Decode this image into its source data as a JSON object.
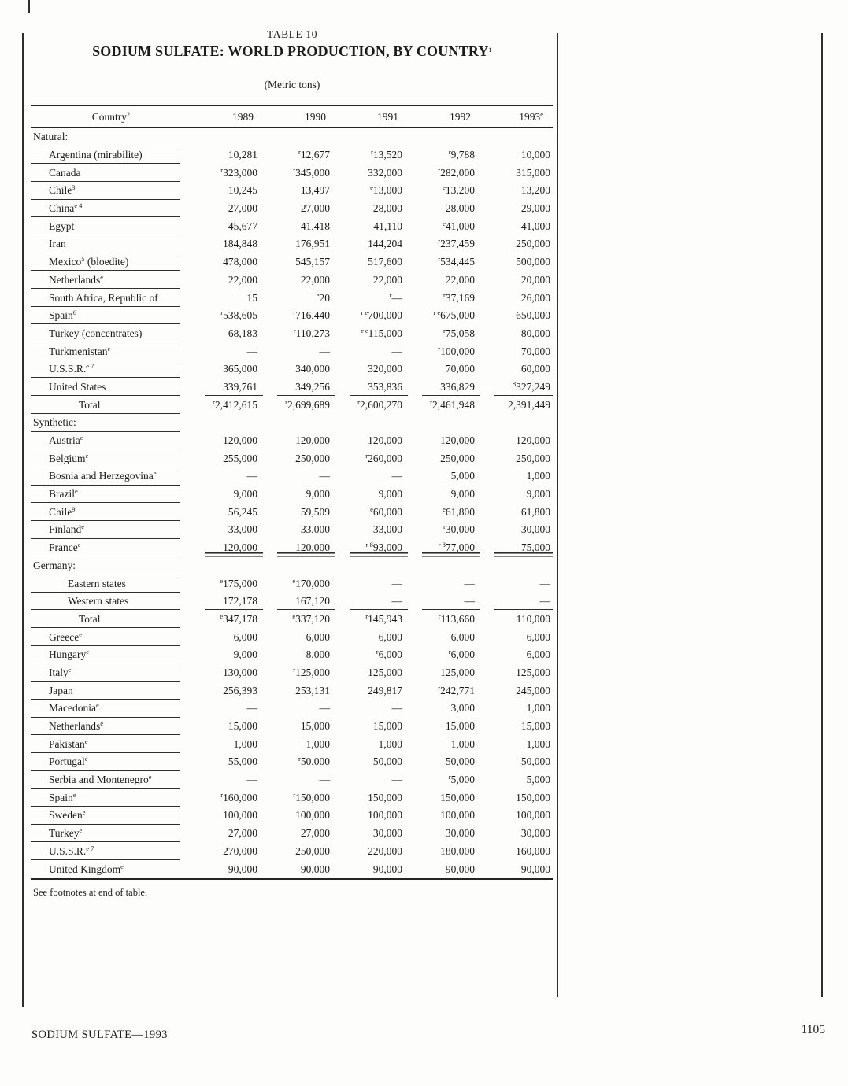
{
  "page": {
    "table_label": "TABLE 10",
    "title": "SODIUM SULFATE:  WORLD PRODUCTION, BY COUNTRY",
    "title_sup": "1",
    "units": "(Metric tons)",
    "see_footnotes": "See footnotes at end of table.",
    "footer_left": "SODIUM SULFATE—1993",
    "page_number": "1105",
    "ink_color": "#1c1c1c",
    "background_color": "#fdfdfb"
  },
  "table": {
    "columns": [
      {
        "label": "Country",
        "sup": "2"
      },
      {
        "label": "1989",
        "sup": ""
      },
      {
        "label": "1990",
        "sup": ""
      },
      {
        "label": "1991",
        "sup": ""
      },
      {
        "label": "1992",
        "sup": ""
      },
      {
        "label": "1993",
        "sup": "e"
      }
    ],
    "rows": [
      {
        "type": "section",
        "label": "Natural:"
      },
      {
        "type": "country",
        "label": "Argentina (mirabilite)",
        "values": [
          "10,281",
          "|r|12,677",
          "|r|13,520",
          "|r|9,788",
          "10,000"
        ]
      },
      {
        "type": "country",
        "label": "Canada",
        "values": [
          "|r|323,000",
          "|r|345,000",
          "332,000",
          "|r|282,000",
          "315,000"
        ]
      },
      {
        "type": "country",
        "label": "Chile|3",
        "values": [
          "10,245",
          "13,497",
          "|e|13,000",
          "|e|13,200",
          "13,200"
        ]
      },
      {
        "type": "country",
        "label": "China|e 4",
        "values": [
          "27,000",
          "27,000",
          "28,000",
          "28,000",
          "29,000"
        ]
      },
      {
        "type": "country",
        "label": "Egypt",
        "values": [
          "45,677",
          "41,418",
          "41,110",
          "|e|41,000",
          "41,000"
        ]
      },
      {
        "type": "country",
        "label": "Iran",
        "values": [
          "184,848",
          "176,951",
          "144,204",
          "|r|237,459",
          "250,000"
        ]
      },
      {
        "type": "country",
        "label": "Mexico|5| (bloedite)",
        "values": [
          "478,000",
          "545,157",
          "517,600",
          "|r|534,445",
          "500,000"
        ]
      },
      {
        "type": "country",
        "label": "Netherlands|e",
        "values": [
          "22,000",
          "22,000",
          "22,000",
          "22,000",
          "20,000"
        ]
      },
      {
        "type": "country",
        "label": "South Africa, Republic of",
        "values": [
          "15",
          "|e|20",
          "|r|—",
          "|r|37,169",
          "26,000"
        ]
      },
      {
        "type": "country",
        "label": "Spain|6",
        "values": [
          "|r|538,605",
          "|r|716,440",
          "|r e|700,000",
          "|r e|675,000",
          "650,000"
        ]
      },
      {
        "type": "country",
        "label": "Turkey (concentrates)",
        "values": [
          "68,183",
          "|r|110,273",
          "|r e|115,000",
          "|r|75,058",
          "80,000"
        ]
      },
      {
        "type": "country",
        "label": "Turkmenistan|e",
        "values": [
          "—",
          "—",
          "—",
          "|r|100,000",
          "70,000"
        ]
      },
      {
        "type": "country",
        "label": "U.S.S.R.|e 7",
        "values": [
          "365,000",
          "340,000",
          "320,000",
          "70,000",
          "60,000"
        ]
      },
      {
        "type": "country",
        "label": "United States",
        "num_rule": "single",
        "values": [
          "339,761",
          "349,256",
          "353,836",
          "336,829",
          "|8|327,249"
        ]
      },
      {
        "type": "total",
        "label": "Total",
        "values": [
          "|r|2,412,615",
          "|r|2,699,689",
          "|r|2,600,270",
          "|r|2,461,948",
          "2,391,449"
        ]
      },
      {
        "type": "section",
        "label": "Synthetic:"
      },
      {
        "type": "country",
        "label": "Austria|e",
        "values": [
          "120,000",
          "120,000",
          "120,000",
          "120,000",
          "120,000"
        ]
      },
      {
        "type": "country",
        "label": "Belgium|e",
        "values": [
          "255,000",
          "250,000",
          "|r|260,000",
          "250,000",
          "250,000"
        ]
      },
      {
        "type": "country",
        "label": "Bosnia and Herzegovina|e",
        "values": [
          "—",
          "—",
          "—",
          "5,000",
          "1,000"
        ]
      },
      {
        "type": "country",
        "label": "Brazil|e",
        "values": [
          "9,000",
          "9,000",
          "9,000",
          "9,000",
          "9,000"
        ]
      },
      {
        "type": "country",
        "label": "Chile|9",
        "values": [
          "56,245",
          "59,509",
          "|e|60,000",
          "|e|61,800",
          "61,800"
        ]
      },
      {
        "type": "country",
        "label": "Finland|e",
        "values": [
          "33,000",
          "33,000",
          "33,000",
          "|r|30,000",
          "30,000"
        ]
      },
      {
        "type": "country",
        "label": "France|e",
        "num_rule": "double",
        "values": [
          "120,000",
          "120,000",
          "|r 8|93,000",
          "|r 8|77,000",
          "75,000"
        ]
      },
      {
        "type": "section",
        "label": "Germany:"
      },
      {
        "type": "substate",
        "label": "Eastern states",
        "values": [
          "|e|175,000",
          "|e|170,000",
          "—",
          "—",
          "—"
        ]
      },
      {
        "type": "substate",
        "label": "Western states",
        "num_rule": "single",
        "values": [
          "172,178",
          "167,120",
          "—",
          "—",
          "—"
        ]
      },
      {
        "type": "total",
        "label": "Total",
        "values": [
          "|e|347,178",
          "|e|337,120",
          "|r|145,943",
          "|r|113,660",
          "110,000"
        ]
      },
      {
        "type": "country",
        "label": "Greece|e",
        "values": [
          "6,000",
          "6,000",
          "6,000",
          "6,000",
          "6,000"
        ]
      },
      {
        "type": "country",
        "label": "Hungary|e",
        "values": [
          "9,000",
          "8,000",
          "|r|6,000",
          "|r|6,000",
          "6,000"
        ]
      },
      {
        "type": "country",
        "label": "Italy|e",
        "values": [
          "130,000",
          "|r|125,000",
          "125,000",
          "125,000",
          "125,000"
        ]
      },
      {
        "type": "country",
        "label": "Japan",
        "values": [
          "256,393",
          "253,131",
          "249,817",
          "|r|242,771",
          "245,000"
        ]
      },
      {
        "type": "country",
        "label": "Macedonia|e",
        "values": [
          "—",
          "—",
          "—",
          "3,000",
          "1,000"
        ]
      },
      {
        "type": "country",
        "label": "Netherlands|e",
        "values": [
          "15,000",
          "15,000",
          "15,000",
          "15,000",
          "15,000"
        ]
      },
      {
        "type": "country",
        "label": "Pakistan|e",
        "values": [
          "1,000",
          "1,000",
          "1,000",
          "1,000",
          "1,000"
        ]
      },
      {
        "type": "country",
        "label": "Portugal|e",
        "values": [
          "55,000",
          "|r|50,000",
          "50,000",
          "50,000",
          "50,000"
        ]
      },
      {
        "type": "country",
        "label": "Serbia and Montenegro|e",
        "values": [
          "—",
          "—",
          "—",
          "|r|5,000",
          "5,000"
        ]
      },
      {
        "type": "country",
        "label": "Spain|e",
        "values": [
          "|r|160,000",
          "|r|150,000",
          "150,000",
          "150,000",
          "150,000"
        ]
      },
      {
        "type": "country",
        "label": "Sweden|e",
        "values": [
          "100,000",
          "100,000",
          "100,000",
          "100,000",
          "100,000"
        ]
      },
      {
        "type": "country",
        "label": "Turkey|e",
        "values": [
          "27,000",
          "27,000",
          "30,000",
          "30,000",
          "30,000"
        ]
      },
      {
        "type": "country",
        "label": "U.S.S.R.|e 7",
        "values": [
          "270,000",
          "250,000",
          "220,000",
          "180,000",
          "160,000"
        ]
      },
      {
        "type": "country",
        "label": "United Kingdom|e",
        "last": true,
        "values": [
          "90,000",
          "90,000",
          "90,000",
          "90,000",
          "90,000"
        ]
      }
    ]
  }
}
